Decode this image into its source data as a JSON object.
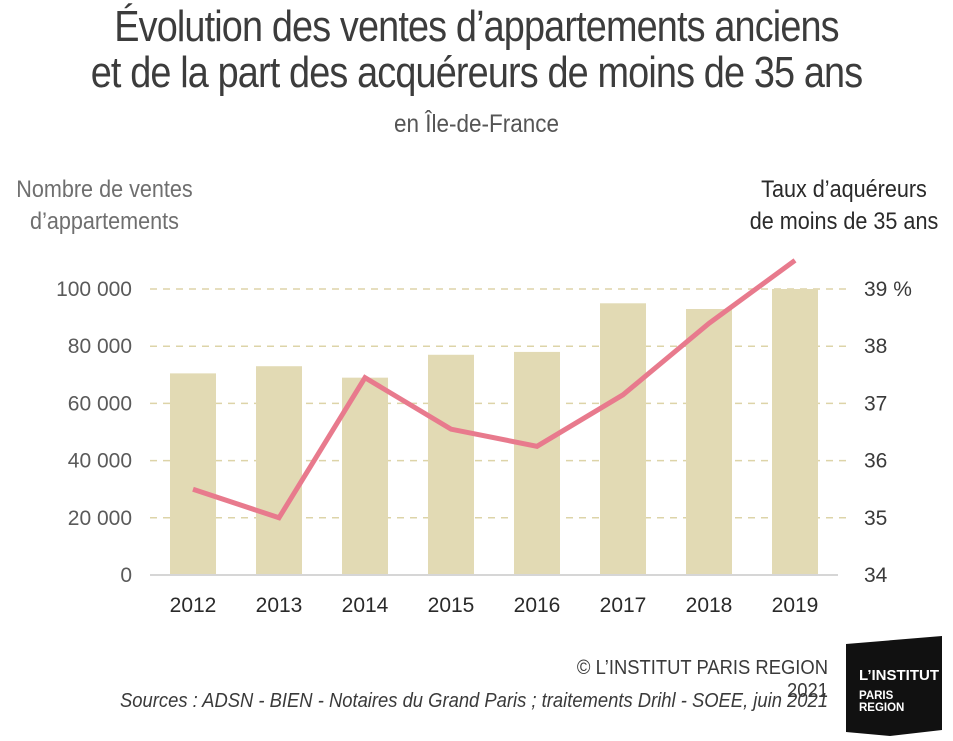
{
  "header": {
    "title_line1": "Évolution des ventes d’appartements anciens",
    "title_line2": "et de la part des acquéreurs de moins de 35 ans",
    "subtitle": "en Île-de-France"
  },
  "axes": {
    "left_label_line1": "Nombre de ventes",
    "left_label_line2": "d’appartements",
    "right_label_line1": "Taux d’aquéreurs",
    "right_label_line2": "de moins de 35 ans"
  },
  "chart_data": {
    "type": "bar+line",
    "categories": [
      "2012",
      "2013",
      "2014",
      "2015",
      "2016",
      "2017",
      "2018",
      "2019"
    ],
    "bars": {
      "axis": "left",
      "values": [
        70500,
        73000,
        69000,
        77000,
        78000,
        95000,
        93000,
        100000
      ],
      "color": "#e2dab4"
    },
    "line": {
      "axis": "right",
      "values": [
        35.5,
        35.0,
        37.45,
        36.55,
        36.25,
        37.15,
        38.4,
        39.5
      ],
      "color": "#e87a8d"
    },
    "left_axis": {
      "ylim": [
        0,
        100000
      ],
      "ticks": [
        0,
        20000,
        40000,
        60000,
        80000,
        100000
      ],
      "tick_labels": [
        "0",
        "20 000",
        "40 000",
        "60 000",
        "80 000",
        "100 000"
      ]
    },
    "right_axis": {
      "ylim": [
        34,
        39
      ],
      "ticks": [
        34,
        35,
        36,
        37,
        38,
        39
      ],
      "tick_labels": [
        "34",
        "35",
        "36",
        "37",
        "38",
        "39 %"
      ]
    },
    "grid": "dashed-horizontal",
    "grid_color": "#ddd4a8"
  },
  "footer": {
    "copyright": "© L’INSTITUT PARIS REGION 2021",
    "sources": "Sources :  ADSN - BIEN - Notaires du Grand Paris ; traitements Drihl - SOEE, juin 2021"
  },
  "logo": {
    "line1": "L’INSTITUT",
    "line2": "PARIS",
    "line3": "REGION",
    "background": "#111111"
  }
}
